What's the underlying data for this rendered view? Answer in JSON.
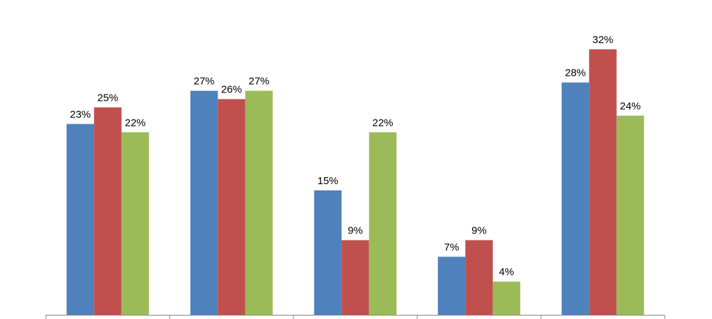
{
  "chart_data": {
    "type": "bar",
    "categories": [
      null,
      null,
      null,
      null,
      null
    ],
    "series": [
      {
        "color": "#4f81bd",
        "values": [
          23,
          27,
          15,
          7,
          28
        ],
        "value_labels": [
          "23%",
          "27%",
          "15%",
          "7%",
          "28%"
        ]
      },
      {
        "color": "#c0504d",
        "values": [
          25,
          26,
          9,
          9,
          32
        ],
        "value_labels": [
          "25%",
          "26%",
          "9%",
          "9%",
          "32%"
        ]
      },
      {
        "color": "#9bbb59",
        "values": [
          22,
          27,
          22,
          4,
          24
        ],
        "value_labels": [
          "22%",
          "27%",
          "22%",
          "4%",
          "24%"
        ]
      }
    ]
  }
}
